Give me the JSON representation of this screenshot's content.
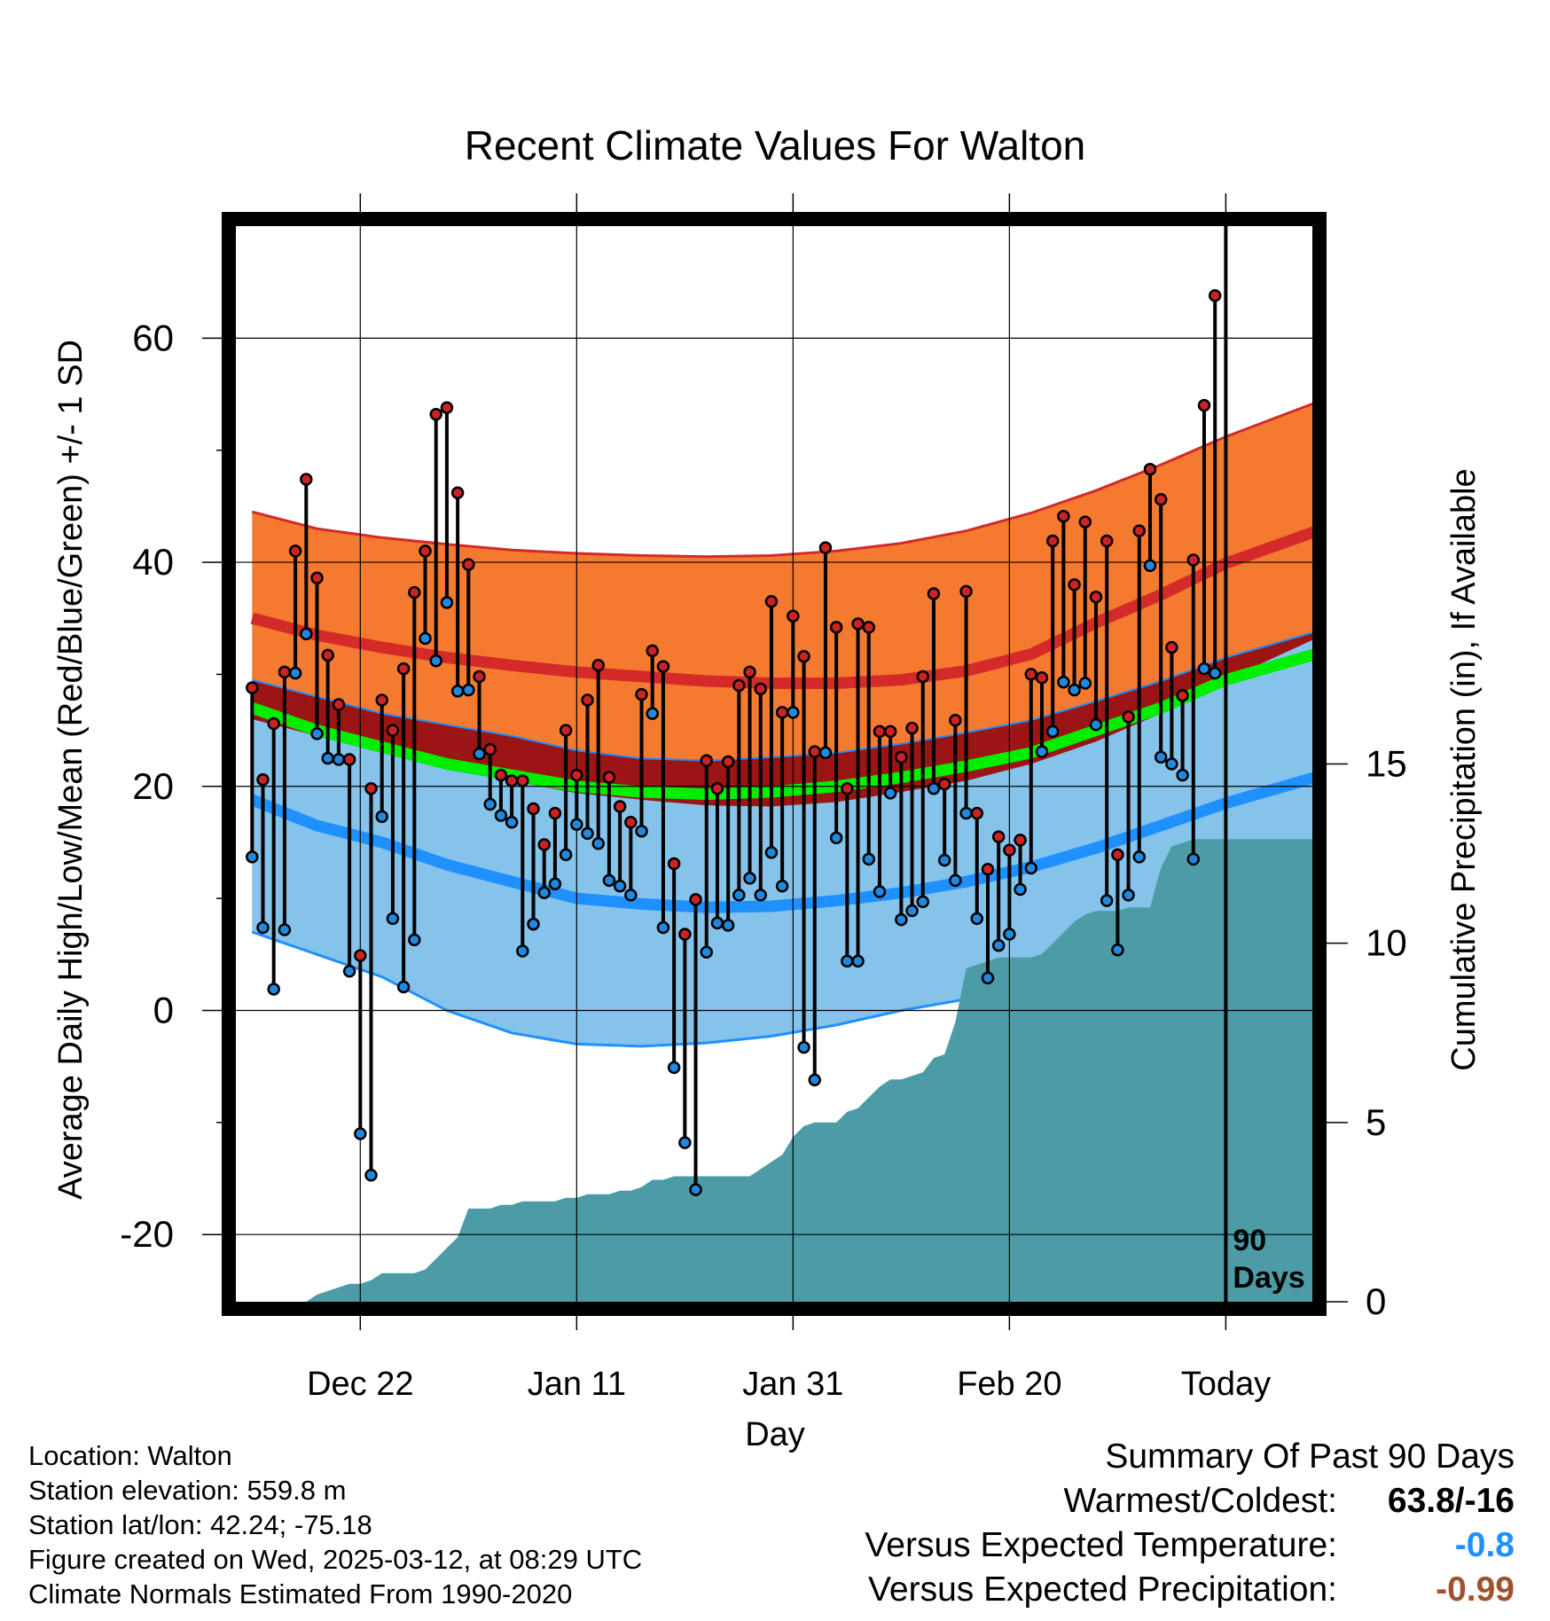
{
  "chart_data": {
    "type": "line",
    "title": "Recent Climate Values For Walton",
    "xlabel": "Day",
    "ylabel": "Average Daily High/Low/Mean (Red/Blue/Green) +/- 1 SD",
    "y2label": "Cumulative Precipitation (in), If Available",
    "ylim": [
      -26,
      70
    ],
    "y2lim": [
      0,
      30
    ],
    "y_ticks": [
      -20,
      0,
      20,
      40,
      60
    ],
    "y2_ticks": [
      0,
      5,
      10,
      15
    ],
    "x_tick_labels": [
      "Dec 22",
      "Jan 11",
      "Jan 31",
      "Feb 20",
      "Today"
    ],
    "x_tick_days": [
      10,
      30,
      50,
      70,
      90
    ],
    "xlim": [
      -1.5,
      98
    ],
    "today_marker": {
      "day": 90,
      "label_line1": "90",
      "label_line2": "Days"
    },
    "grid": true,
    "normal_high_mean": [
      35,
      33.5,
      32.4,
      31.5,
      30.8,
      30.2,
      29.8,
      29.4,
      29.2,
      29.2,
      29.5,
      30.3,
      31.8,
      34.6,
      37.1,
      39.9,
      43
    ],
    "normal_high_upper": [
      44.5,
      43,
      42.2,
      41.6,
      41.1,
      40.8,
      40.6,
      40.5,
      40.6,
      41,
      41.7,
      42.8,
      44.4,
      46.4,
      48.7,
      51.2,
      54.5
    ],
    "normal_high_lower": [
      26,
      24.5,
      23.2,
      21.5,
      20.5,
      19.4,
      18.8,
      18.3,
      18.2,
      18.6,
      19.5,
      20.5,
      22,
      24,
      26.5,
      29.5,
      33.5
    ],
    "normal_low_mean": [
      18.8,
      16.5,
      15,
      13,
      11.5,
      10,
      9.5,
      9.2,
      9.3,
      9.8,
      10.5,
      11.5,
      12.8,
      14.5,
      16.5,
      18.5,
      21
    ],
    "normal_low_upper": [
      29.5,
      28,
      26.5,
      25.5,
      24.5,
      23.2,
      22.5,
      22.3,
      22.6,
      23,
      23.8,
      24.8,
      25.9,
      27.6,
      29.4,
      31.5,
      34
    ],
    "normal_low_lower": [
      7,
      5,
      3,
      0,
      -2,
      -3,
      -3.2,
      -2.9,
      -2.3,
      -1.3,
      0,
      1,
      2.2,
      3.8,
      5.8,
      7.8,
      10.3
    ],
    "normal_mean": [
      27,
      25,
      23.5,
      22,
      21,
      20,
      19.5,
      19.3,
      19.5,
      20,
      20.8,
      21.8,
      23,
      25,
      27,
      29.5,
      32
    ],
    "normal_days": [
      0,
      6,
      12,
      18,
      24,
      30,
      36,
      42,
      48,
      54,
      60,
      66,
      72,
      78,
      84,
      90,
      99
    ],
    "highs": [
      28.8,
      20.6,
      25.6,
      30.2,
      41,
      47.4,
      38.6,
      31.7,
      27.3,
      22.4,
      4.9,
      19.8,
      27.7,
      25,
      30.5,
      37.3,
      41,
      53.2,
      53.8,
      46.2,
      39.8,
      29.8,
      23.3,
      21,
      20.5,
      20.5,
      18,
      14.8,
      17.6,
      25,
      21,
      27.7,
      30.8,
      20.8,
      18.2,
      16.8,
      28.2,
      32.1,
      30.7,
      13.1,
      6.8,
      9.9,
      22.3,
      19.8,
      22.2,
      29,
      30.2,
      28.7,
      36.5,
      26.6,
      35.2,
      31.6,
      23.1,
      41.3,
      34.2,
      19.8,
      34.5,
      34.2,
      24.9,
      24.9,
      22.6,
      25.2,
      29.8,
      37.2,
      20.2,
      25.9,
      37.4,
      17.6,
      12.6,
      15.5,
      14.3,
      15.2,
      30,
      29.7,
      41.9,
      44.1,
      38,
      43.6,
      36.9,
      41.9,
      13.9,
      26.2,
      42.8,
      48.3,
      45.6,
      32.4,
      28.1,
      40.2,
      54,
      63.8
    ],
    "lows": [
      13.7,
      7.4,
      1.9,
      7.2,
      30.1,
      33.6,
      24.7,
      22.5,
      22.4,
      3.5,
      -11,
      -14.7,
      17.3,
      8.2,
      2.1,
      6.3,
      33.2,
      31.2,
      36.4,
      28.5,
      28.6,
      22.9,
      18.4,
      17.4,
      16.8,
      5.3,
      7.7,
      10.5,
      11.3,
      13.9,
      16.6,
      15.8,
      14.9,
      11.6,
      11.1,
      10.3,
      16,
      26.5,
      7.4,
      -5.1,
      -11.8,
      -16,
      5.2,
      7.8,
      7.6,
      10.3,
      11.8,
      10.3,
      14.1,
      11.1,
      26.6,
      -3.3,
      -6.2,
      23,
      15.4,
      4.4,
      4.4,
      13.5,
      10.6,
      19.4,
      8.1,
      8.9,
      9.7,
      19.8,
      13.4,
      11.6,
      17.6,
      8.2,
      2.9,
      5.8,
      6.8,
      10.8,
      12.7,
      23.1,
      24.9,
      29.3,
      28.6,
      29.2,
      25.5,
      9.8,
      5.4,
      10.3,
      13.7,
      39.7,
      22.6,
      22,
      21,
      13.5,
      30.5,
      30.1
    ],
    "precip_cum": [
      0,
      0,
      0,
      0,
      0,
      0,
      0.2,
      0.3,
      0.4,
      0.5,
      0.5,
      0.6,
      0.8,
      0.8,
      0.8,
      0.8,
      0.9,
      1.2,
      1.5,
      1.8,
      2.6,
      2.6,
      2.6,
      2.7,
      2.7,
      2.8,
      2.8,
      2.8,
      2.8,
      2.9,
      2.9,
      3,
      3,
      3,
      3.1,
      3.1,
      3.2,
      3.4,
      3.4,
      3.5,
      3.5,
      3.5,
      3.5,
      3.5,
      3.5,
      3.5,
      3.5,
      3.7,
      3.9,
      4.1,
      4.6,
      4.9,
      5,
      5,
      5,
      5.3,
      5.4,
      5.7,
      6,
      6.2,
      6.2,
      6.3,
      6.4,
      6.8,
      6.9,
      7.8,
      9.3,
      9.4,
      9.5,
      9.6,
      9.6,
      9.6,
      9.6,
      9.7,
      10,
      10.3,
      10.6,
      10.8,
      10.9,
      10.9,
      10.9,
      11,
      11,
      11,
      12.1,
      12.7,
      12.8,
      12.9,
      12.9,
      12.9,
      12.9
    ],
    "precip_last": 12.9
  },
  "info": {
    "location": "Location: Walton",
    "elevation": "Station elevation: 559.8 m",
    "latlon": "Station lat/lon: 42.24; -75.18",
    "created": "Figure created on Wed, 2025-03-12, at 08:29 UTC",
    "normals": "Climate Normals Estimated From 1990-2020"
  },
  "summary": {
    "title": "Summary Of Past 90 Days",
    "warm_cold_label": "Warmest/Coldest:",
    "warm_cold_value": "63.8/-16",
    "temp_label": "Versus Expected Temperature:",
    "temp_value": "-0.8",
    "precip_label": "Versus Expected Precipitation:",
    "precip_value": "-0.99"
  },
  "colors": {
    "high_band": "#f47a30",
    "high_line": "#d42a2a",
    "low_band": "#85c3eb",
    "low_line": "#1e90ff",
    "mean_line": "#00ee00",
    "overlap_band": "#9b1515",
    "precip_fill": "#4b9ca6",
    "high_dot": "#cc2222",
    "low_dot": "#2288dd",
    "temp_value": "#1e90ff",
    "precip_value": "#a0522d"
  }
}
